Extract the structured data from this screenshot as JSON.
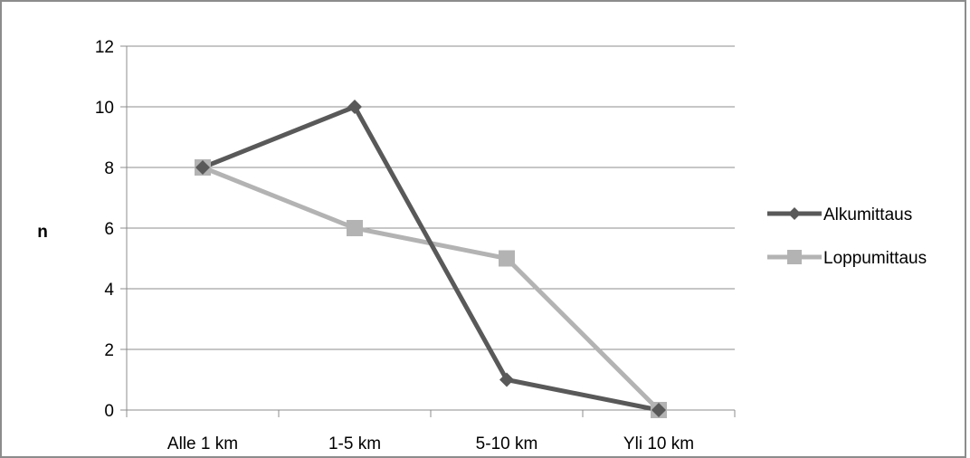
{
  "chart_data": {
    "type": "line",
    "title": "",
    "xlabel": "",
    "ylabel": "n",
    "categories": [
      "Alle 1 km",
      "1-5 km",
      "5-10 km",
      "Yli 10 km"
    ],
    "ylim": [
      0,
      12
    ],
    "yticks": [
      0,
      2,
      4,
      6,
      8,
      10,
      12
    ],
    "grid": "horizontal",
    "legend_position": "right",
    "series": [
      {
        "name": "Alkumittaus",
        "values": [
          8,
          10,
          1,
          0
        ],
        "color": "#595959",
        "marker": "diamond"
      },
      {
        "name": "Loppumittaus",
        "values": [
          8,
          6,
          5,
          0
        ],
        "color": "#b3b3b3",
        "marker": "square"
      }
    ]
  }
}
